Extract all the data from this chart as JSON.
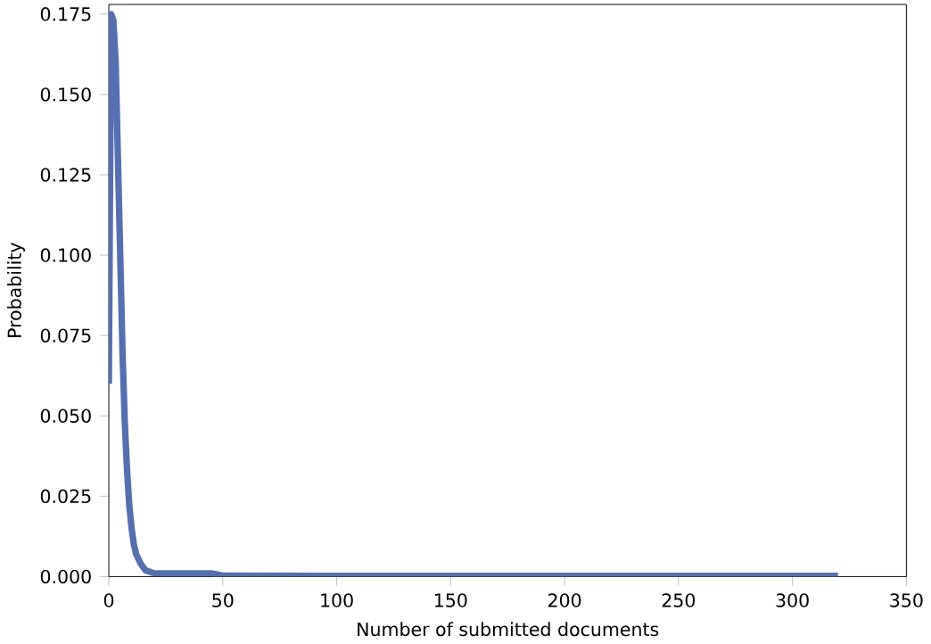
{
  "chart_data": {
    "type": "line",
    "xlabel": "Number of submitted documents",
    "ylabel": "Probability",
    "x": [
      0,
      1,
      2,
      3,
      4,
      5,
      6,
      7,
      8,
      9,
      10,
      11,
      12,
      14,
      16,
      18,
      20,
      25,
      30,
      40,
      45,
      50,
      100,
      150,
      200,
      250,
      300,
      320
    ],
    "series": [
      {
        "color": "#5470b0",
        "values": [
          0.06,
          0.175,
          0.173,
          0.16,
          0.13,
          0.1,
          0.07,
          0.048,
          0.033,
          0.022,
          0.015,
          0.01,
          0.007,
          0.004,
          0.002,
          0.0015,
          0.001,
          0.001,
          0.001,
          0.001,
          0.001,
          0.0003,
          0.0002,
          0.0002,
          0.0002,
          0.0002,
          0.0002,
          0.0002
        ]
      }
    ],
    "xlim": [
      0,
      350
    ],
    "ylim": [
      0,
      0.178
    ],
    "xticks": [
      0,
      50,
      100,
      150,
      200,
      250,
      300,
      350
    ],
    "yticks": [
      {
        "value": 0,
        "label": "0.000"
      },
      {
        "value": 0.025,
        "label": "0.025"
      },
      {
        "value": 0.05,
        "label": "0.050"
      },
      {
        "value": 0.075,
        "label": "0.075"
      },
      {
        "value": 0.1,
        "label": "0.100"
      },
      {
        "value": 0.125,
        "label": "0.125"
      },
      {
        "value": 0.15,
        "label": "0.150"
      },
      {
        "value": 0.175,
        "label": "0.175"
      }
    ],
    "grid": false,
    "marker": "none",
    "line_style": "solid"
  }
}
